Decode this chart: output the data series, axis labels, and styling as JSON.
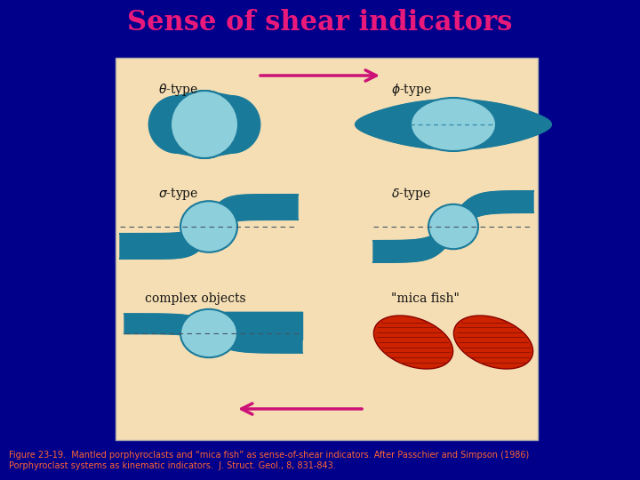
{
  "title": "Sense of shear indicators",
  "title_color": "#E8197A",
  "title_fontsize": 22,
  "bg_color": "#00008B",
  "panel_bg": "#F5DEB3",
  "arrow_color": "#CC1177",
  "teal_dark": "#1A7A9A",
  "teal_light": "#8ECFDC",
  "red_fish": "#CC2200",
  "caption_color": "#FF6633",
  "caption_fontsize": 7.0,
  "caption_text": "Figure 23-19.  Mantled porphyroclasts and “mica fish” as sense-of-shear indicators. After Passchier and Simpson (1986)\nPorphyroclast systems as kinematic indicators.  J. Struct. Geol., 8, 831-843."
}
